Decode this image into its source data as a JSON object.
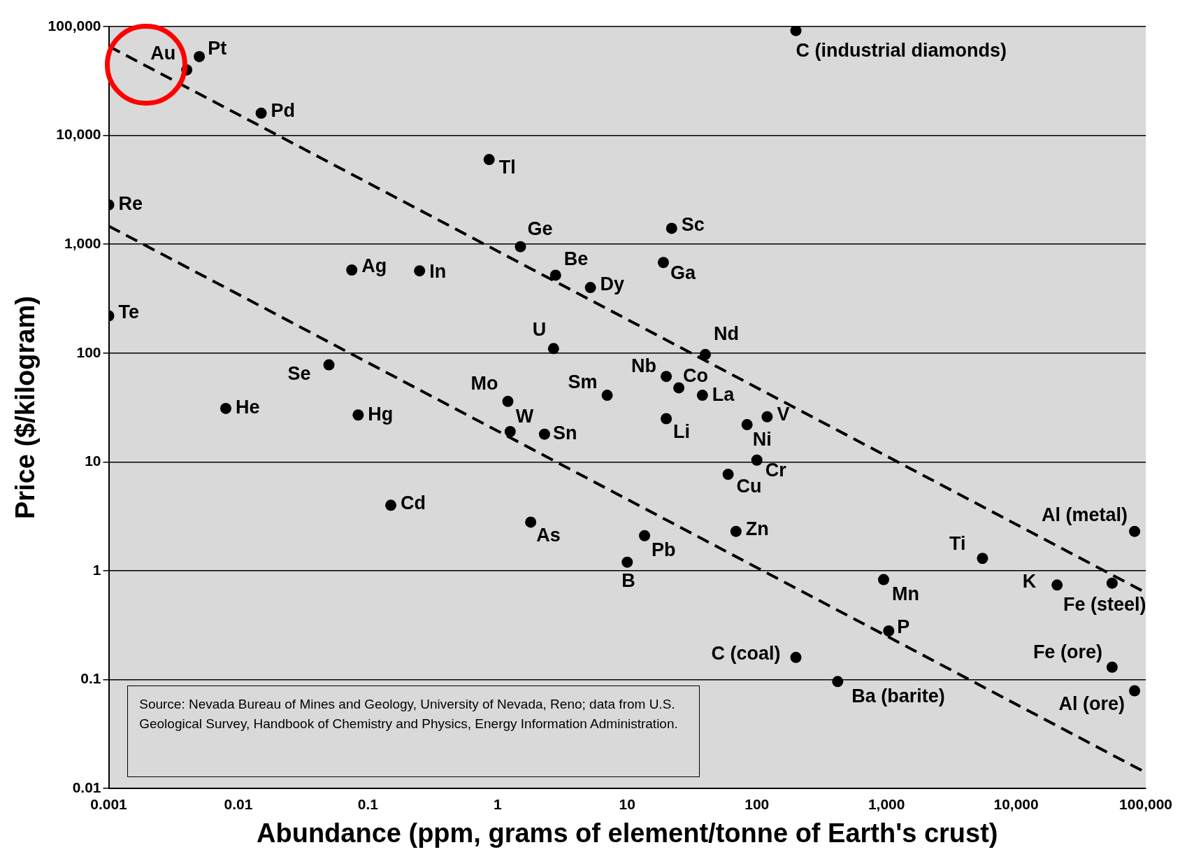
{
  "chart_data": {
    "type": "scatter",
    "xlabel": "Abundance (ppm, grams of element/tonne of Earth's crust)",
    "ylabel": "Price ($/kilogram)",
    "log": "xy",
    "grid": "y",
    "marker": "circle",
    "xlim": [
      0.001,
      100000
    ],
    "ylim": [
      0.01,
      100000
    ],
    "xticks": [
      0.001,
      0.01,
      0.1,
      1,
      10,
      100,
      {
        "value": 1000,
        "label": "1,000"
      },
      {
        "value": 10000,
        "label": "10,000"
      },
      {
        "value": 100000,
        "label": "100,000"
      }
    ],
    "yticks": [
      0.01,
      0.1,
      1,
      10,
      100,
      {
        "value": 1000,
        "label": "1,000"
      },
      {
        "value": 10000,
        "label": "10,000"
      },
      {
        "value": 100000,
        "label": "100,000"
      }
    ],
    "series": [
      {
        "color": "#000000",
        "x": [
          0.004,
          0.005,
          0.015,
          0.86,
          0.001,
          0.001,
          200,
          1.5,
          22,
          19,
          0.075,
          0.25,
          2.8,
          5.2,
          2.7,
          40,
          0.05,
          20,
          25,
          38,
          7,
          1.2,
          0.008,
          0.084,
          120,
          20,
          84,
          1.25,
          2.3,
          100,
          60,
          0.15,
          1.8,
          69,
          82000,
          13.6,
          5500,
          10,
          950,
          20700,
          55000,
          1040,
          200,
          55000,
          420,
          82000
        ],
        "values": [
          40000,
          53000,
          16000,
          6000,
          2300,
          220,
          92000,
          950,
          1400,
          680,
          580,
          570,
          520,
          400,
          110,
          97,
          78,
          61,
          48,
          41,
          41,
          36,
          31,
          27,
          26,
          25,
          22,
          19,
          18,
          10.4,
          7.7,
          4,
          2.8,
          2.3,
          2.3,
          2.1,
          1.3,
          1.2,
          0.83,
          0.74,
          0.77,
          0.28,
          0.16,
          0.13,
          0.096,
          0.079
        ]
      },
      {
        "type": "line",
        "color": "#000000",
        "line_style": "dashed",
        "marker": "none",
        "x": [
          0.001,
          100000
        ],
        "values": [
          66000,
          0.63
        ]
      },
      {
        "type": "line",
        "color": "#000000",
        "line_style": "dashed",
        "marker": "none",
        "x": [
          0.001,
          100000
        ],
        "values": [
          1470,
          0.014
        ]
      }
    ],
    "annotations": [
      {
        "text": "Au",
        "x": 0.004,
        "y": 40000
      },
      {
        "text": "Pt",
        "x": 0.005,
        "y": 53000
      },
      {
        "text": "Pd",
        "x": 0.015,
        "y": 16000
      },
      {
        "text": "Tl",
        "x": 0.86,
        "y": 6000
      },
      {
        "text": "Re",
        "x": 0.001,
        "y": 2300
      },
      {
        "text": "Te",
        "x": 0.001,
        "y": 220
      },
      {
        "text": "C (industrial diamonds)",
        "x": 200,
        "y": 92000
      },
      {
        "text": "Ge",
        "x": 1.5,
        "y": 950
      },
      {
        "text": "Sc",
        "x": 22,
        "y": 1400
      },
      {
        "text": "Ga",
        "x": 19,
        "y": 680
      },
      {
        "text": "Ag",
        "x": 0.075,
        "y": 580
      },
      {
        "text": "In",
        "x": 0.25,
        "y": 570
      },
      {
        "text": "Be",
        "x": 2.8,
        "y": 520
      },
      {
        "text": "Dy",
        "x": 5.2,
        "y": 400
      },
      {
        "text": "U",
        "x": 2.7,
        "y": 110
      },
      {
        "text": "Nd",
        "x": 40,
        "y": 97
      },
      {
        "text": "Se",
        "x": 0.05,
        "y": 78
      },
      {
        "text": "Nb",
        "x": 20,
        "y": 61
      },
      {
        "text": "Co",
        "x": 25,
        "y": 48
      },
      {
        "text": "La",
        "x": 38,
        "y": 41
      },
      {
        "text": "Sm",
        "x": 7,
        "y": 41
      },
      {
        "text": "Mo",
        "x": 1.2,
        "y": 36
      },
      {
        "text": "He",
        "x": 0.008,
        "y": 31
      },
      {
        "text": "Hg",
        "x": 0.084,
        "y": 27
      },
      {
        "text": "V",
        "x": 120,
        "y": 26
      },
      {
        "text": "Li",
        "x": 20,
        "y": 25
      },
      {
        "text": "Ni",
        "x": 84,
        "y": 22
      },
      {
        "text": "W",
        "x": 1.25,
        "y": 19
      },
      {
        "text": "Sn",
        "x": 2.3,
        "y": 18
      },
      {
        "text": "Cr",
        "x": 100,
        "y": 10.4
      },
      {
        "text": "Cu",
        "x": 60,
        "y": 7.7
      },
      {
        "text": "Cd",
        "x": 0.15,
        "y": 4
      },
      {
        "text": "As",
        "x": 1.8,
        "y": 2.8
      },
      {
        "text": "Zn",
        "x": 69,
        "y": 2.3
      },
      {
        "text": "Al (metal)",
        "x": 82000,
        "y": 2.3
      },
      {
        "text": "Pb",
        "x": 13.6,
        "y": 2.1
      },
      {
        "text": "Ti",
        "x": 5500,
        "y": 1.3
      },
      {
        "text": "B",
        "x": 10,
        "y": 1.2
      },
      {
        "text": "Mn",
        "x": 950,
        "y": 0.83
      },
      {
        "text": "K",
        "x": 20700,
        "y": 0.74
      },
      {
        "text": "Fe (steel)",
        "x": 55000,
        "y": 0.77
      },
      {
        "text": "P",
        "x": 1040,
        "y": 0.28
      },
      {
        "text": "C (coal)",
        "x": 200,
        "y": 0.16
      },
      {
        "text": "Fe (ore)",
        "x": 55000,
        "y": 0.13
      },
      {
        "text": "Ba (barite)",
        "x": 420,
        "y": 0.096
      },
      {
        "text": "Al (ore)",
        "x": 82000,
        "y": 0.079
      },
      "Source: Nevada Bureau of Mines and Geology, University of Nevada, Reno; data from U.S. Geological Survey, Handbook of Chemistry and Physics, Energy Information Administration."
    ]
  }
}
